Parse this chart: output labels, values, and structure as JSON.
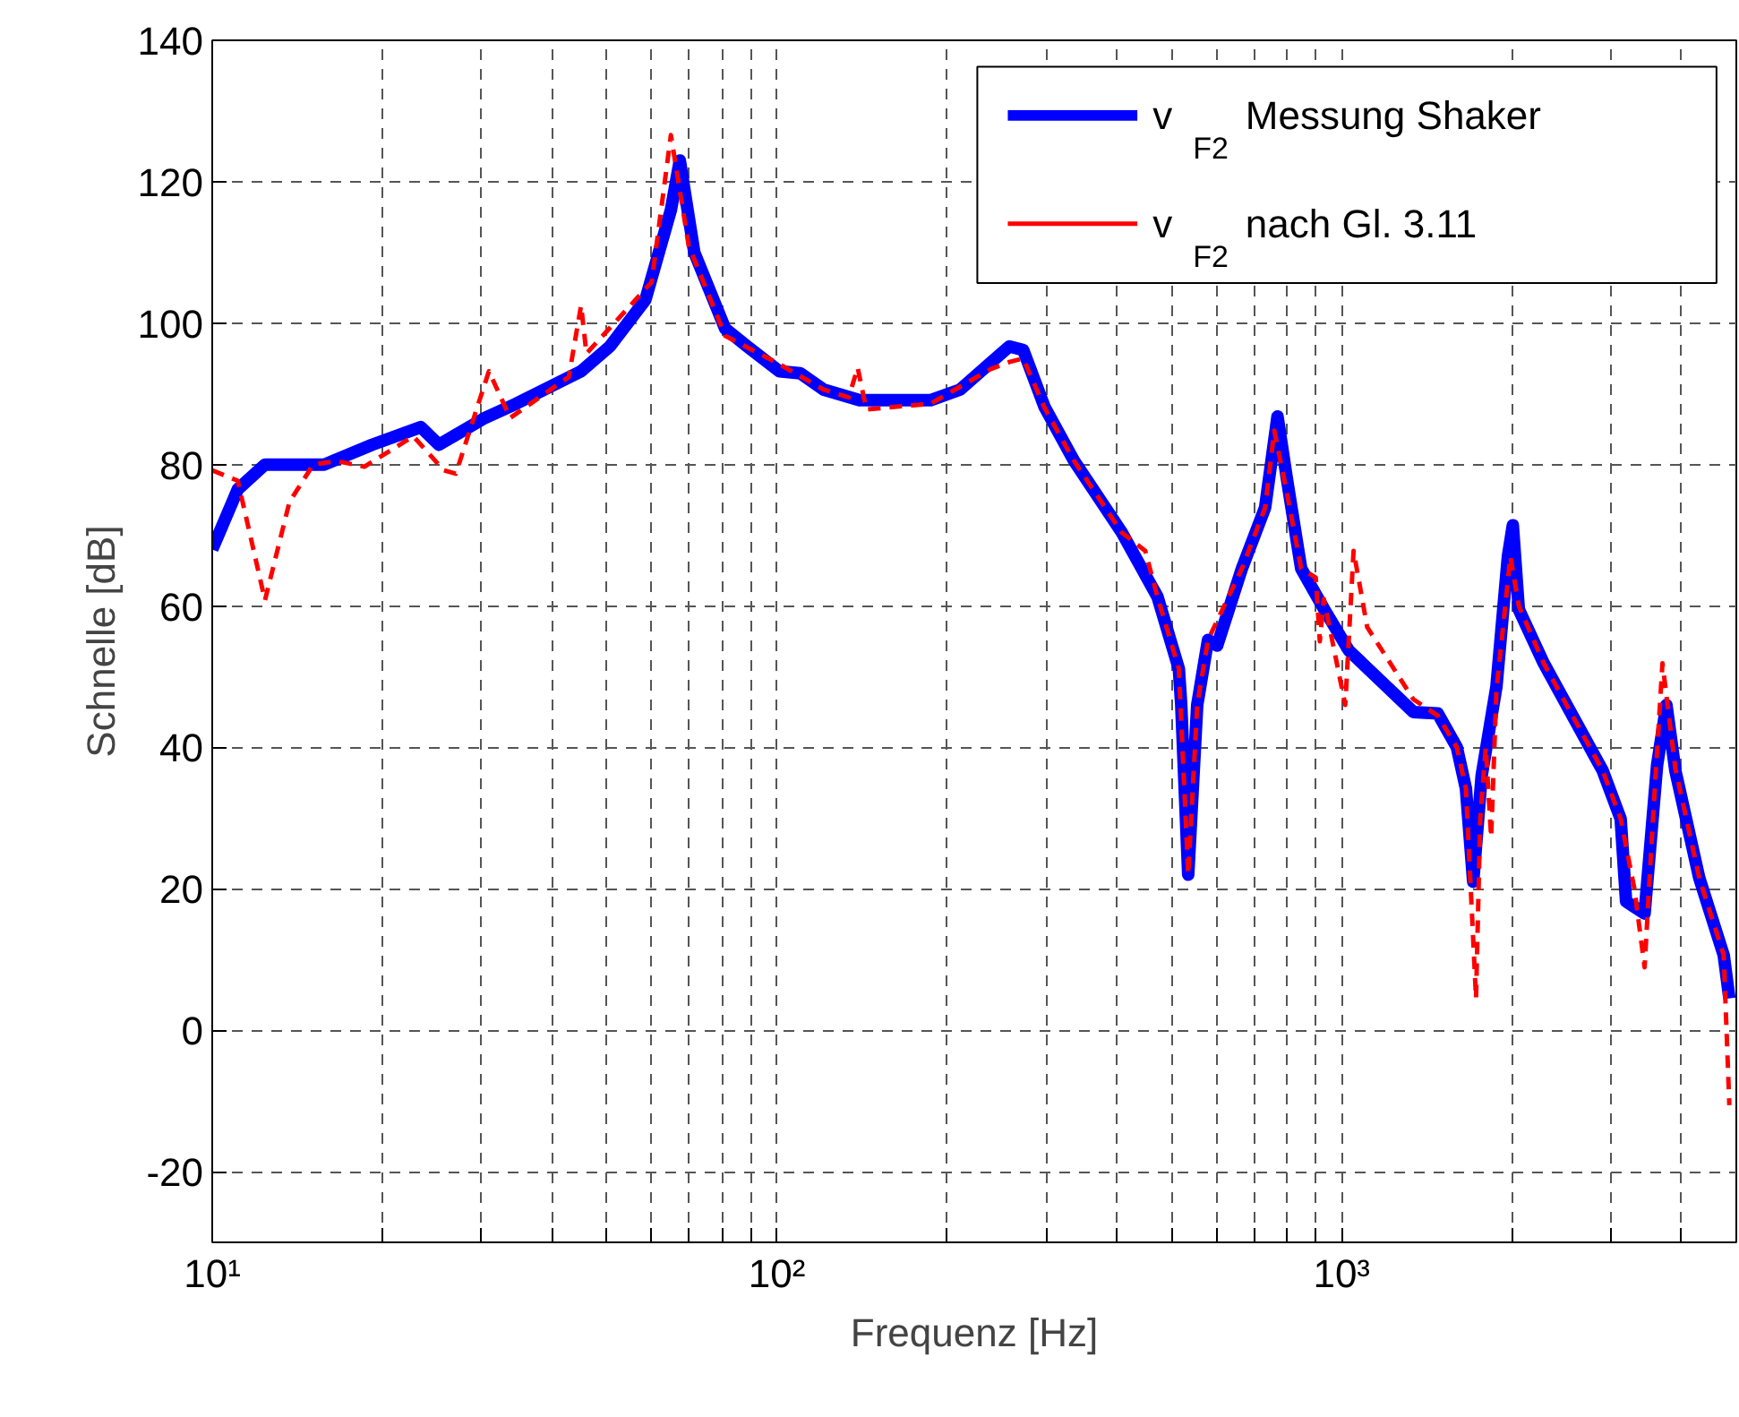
{
  "chart_data": {
    "type": "line",
    "xlabel": "Frequenz [Hz]",
    "ylabel": "Schnelle [dB]",
    "log": "x",
    "xlim": [
      10,
      5000
    ],
    "ylim": [
      -30,
      140
    ],
    "xticks": [
      {
        "value": 10,
        "label": "10¹"
      },
      {
        "value": 20,
        "label": null
      },
      {
        "value": 30,
        "label": null
      },
      {
        "value": 40,
        "label": null
      },
      {
        "value": 50,
        "label": null
      },
      {
        "value": 60,
        "label": null
      },
      {
        "value": 70,
        "label": null
      },
      {
        "value": 80,
        "label": null
      },
      {
        "value": 90,
        "label": null
      },
      {
        "value": 100,
        "label": "10²"
      },
      {
        "value": 200,
        "label": null
      },
      {
        "value": 300,
        "label": null
      },
      {
        "value": 400,
        "label": null
      },
      {
        "value": 500,
        "label": null
      },
      {
        "value": 600,
        "label": null
      },
      {
        "value": 700,
        "label": null
      },
      {
        "value": 800,
        "label": null
      },
      {
        "value": 900,
        "label": null
      },
      {
        "value": 1000,
        "label": "10³"
      },
      {
        "value": 2000,
        "label": null
      },
      {
        "value": 3000,
        "label": null
      },
      {
        "value": 4000,
        "label": null
      }
    ],
    "yticks": [
      -20,
      0,
      20,
      40,
      60,
      80,
      100,
      120,
      140
    ],
    "grid": true,
    "legend": "top right",
    "series": [
      {
        "name": "v$_{F2}$ Messung Shaker",
        "color": "#0000ff",
        "line_style": "solid",
        "x": [
          10,
          11.1,
          12.4,
          15.8,
          19.2,
          23.4,
          25.2,
          30.4,
          34.5,
          45,
          50.6,
          58.5,
          64.9,
          67.3,
          71.4,
          81,
          88.6,
          101,
          110,
          121,
          140,
          187,
          211,
          239,
          258,
          273,
          298,
          336,
          408,
          472,
          515,
          520,
          535,
          555,
          580,
          602,
          666,
          732,
          770,
          800,
          848,
          932,
          1030,
          1340,
          1480,
          1600,
          1660,
          1710,
          1770,
          1880,
          1970,
          2010,
          2060,
          2280,
          2900,
          3120,
          3190,
          3440,
          3620,
          3760,
          3900,
          4300,
          4750,
          4860
        ],
        "values": [
          68,
          76.5,
          80,
          80,
          82.8,
          85.3,
          82.8,
          86.6,
          88.6,
          93.2,
          96.7,
          103.3,
          116,
          123,
          110,
          99.2,
          96.7,
          93.2,
          92.9,
          90.6,
          89.1,
          89.1,
          90.6,
          94.4,
          96.7,
          96.2,
          88.1,
          80.5,
          70.4,
          61.3,
          51.1,
          46,
          22,
          46,
          55.2,
          54.4,
          65.3,
          73.9,
          86.8,
          78,
          65.3,
          59.5,
          53.7,
          45,
          44.8,
          40,
          34.2,
          21,
          36,
          48.6,
          67,
          71.4,
          59.5,
          51.9,
          36.7,
          29.9,
          18.2,
          16.5,
          37.5,
          46,
          36.7,
          21.5,
          10.6,
          4.5
        ]
      },
      {
        "name": "v$_{F2}$ nach Gl. 3.11",
        "color": "#ff0000",
        "line_style": "dashed",
        "x": [
          10,
          11.1,
          12.4,
          13.7,
          15.1,
          16.6,
          18.6,
          22.7,
          25.7,
          27,
          30.9,
          33.7,
          42.8,
          45,
          46,
          60,
          64.9,
          69.8,
          81,
          101,
          121,
          134,
          139,
          144,
          187,
          239,
          258,
          273,
          298,
          336,
          408,
          449,
          472,
          515,
          535,
          555,
          580,
          666,
          732,
          760,
          800,
          848,
          900,
          915,
          930,
          1015,
          1050,
          1110,
          1340,
          1480,
          1600,
          1660,
          1730,
          1760,
          1800,
          1840,
          1880,
          1990,
          2060,
          2280,
          2900,
          3120,
          3300,
          3440,
          3560,
          3700,
          3900,
          4300,
          4750,
          4860
        ],
        "values": [
          79.2,
          77.7,
          60.8,
          74.7,
          80,
          80.5,
          79.7,
          84,
          79.2,
          78.7,
          93.2,
          86.6,
          92.4,
          102.5,
          95.7,
          105.8,
          126.6,
          110.9,
          98.2,
          94.2,
          90.6,
          89.5,
          93.7,
          87.8,
          88.6,
          93.5,
          94.5,
          95,
          88,
          80.5,
          70.4,
          67.8,
          61.3,
          51.1,
          22,
          46,
          55.2,
          65.3,
          73.9,
          84.8,
          76,
          65.3,
          64,
          55,
          61,
          46,
          67.8,
          57,
          46.8,
          44.5,
          40,
          34.2,
          4.5,
          30,
          40,
          27.3,
          48,
          67,
          60,
          51.9,
          36.7,
          29.9,
          20,
          8.9,
          30,
          51.9,
          37,
          21.5,
          10.6,
          -10.6
        ]
      }
    ]
  }
}
